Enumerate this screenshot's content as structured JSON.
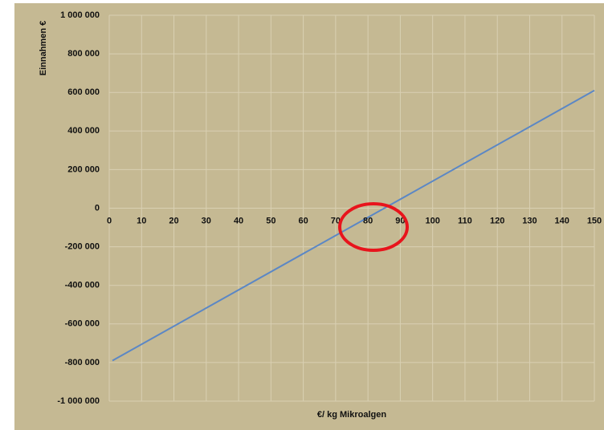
{
  "chart_data": {
    "type": "line",
    "x_label": "€/ kg Mikroalgen",
    "y_label": "Einnahmen €",
    "x": [
      1,
      150
    ],
    "series": [
      {
        "name": "Einnahmen",
        "color": "#5b87c5",
        "values": [
          -790000,
          610000
        ]
      }
    ],
    "xlim": [
      0,
      150
    ],
    "xticks": [
      0,
      10,
      20,
      30,
      40,
      50,
      60,
      70,
      80,
      90,
      100,
      110,
      120,
      130,
      140,
      150
    ],
    "ylim": [
      -1000000,
      1000000
    ],
    "yticks": [
      {
        "value": -1000000,
        "label": "-1 000 000"
      },
      {
        "value": -800000,
        "label": "-800 000"
      },
      {
        "value": -600000,
        "label": "-600 000"
      },
      {
        "value": -400000,
        "label": "-400 000"
      },
      {
        "value": -200000,
        "label": "-200 000"
      },
      0,
      {
        "value": 200000,
        "label": "200 000"
      },
      {
        "value": 400000,
        "label": "400 000"
      },
      {
        "value": 600000,
        "label": "600 000"
      },
      {
        "value": 800000,
        "label": "800 000"
      },
      {
        "value": 1000000,
        "label": "1 000 000"
      }
    ],
    "grid": true
  }
}
